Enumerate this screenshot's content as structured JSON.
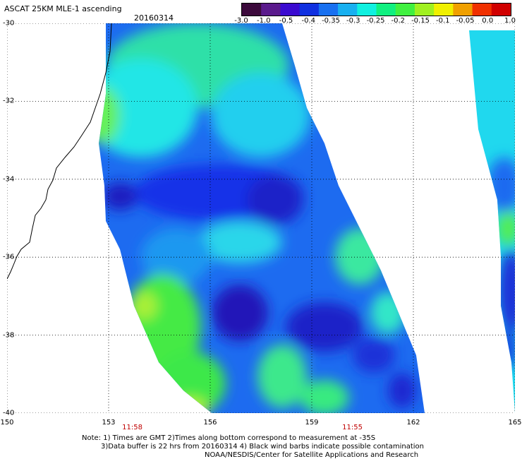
{
  "header": {
    "title": "ASCAT 25KM MLE-1 ascending",
    "date": "20160314"
  },
  "colorbar": {
    "tick_labels": [
      "-3.0",
      "-1.0",
      "-0.5",
      "-0.4",
      "-0.35",
      "-0.3",
      "-0.25",
      "-0.2",
      "-0.15",
      "-0.1",
      "-0.05",
      "0.0",
      "1.0"
    ],
    "colors": [
      "#3c0a3c",
      "#5a1a8c",
      "#3a0ad0",
      "#1030e0",
      "#1870f0",
      "#18b0f0",
      "#10f0e0",
      "#10f080",
      "#40f040",
      "#a0f020",
      "#f0f000",
      "#f0a000",
      "#f03000",
      "#d00000"
    ]
  },
  "map": {
    "lat_labels": [
      "-30",
      "-32",
      "-34",
      "-36",
      "-38",
      "-40"
    ],
    "lon_labels": [
      "150",
      "153",
      "156",
      "159",
      "162",
      "165"
    ],
    "lat_values": [
      -30,
      -32,
      -34,
      -36,
      -38,
      -40
    ],
    "lon_values": [
      150,
      153,
      156,
      159,
      162,
      165
    ],
    "time_labels": [
      {
        "text": "11:58",
        "lon": 153.7
      },
      {
        "text": "11:55",
        "lon": 160.2
      }
    ],
    "lat_range": [
      -40,
      -30
    ],
    "lon_range": [
      150,
      165
    ],
    "grid": "dotted",
    "colors": {
      "coast": "#000000",
      "grid": "#000000"
    }
  },
  "notes": {
    "line1": "Note: 1) Times are GMT 2)Times along bottom correspond to measurement at -35S",
    "line2": "3)Data buffer is 22 hrs from 20160314 4) Black wind barbs indicate possible contamination",
    "line3": "NOAA/NESDIS/Center for Satellite Applications and Research"
  }
}
